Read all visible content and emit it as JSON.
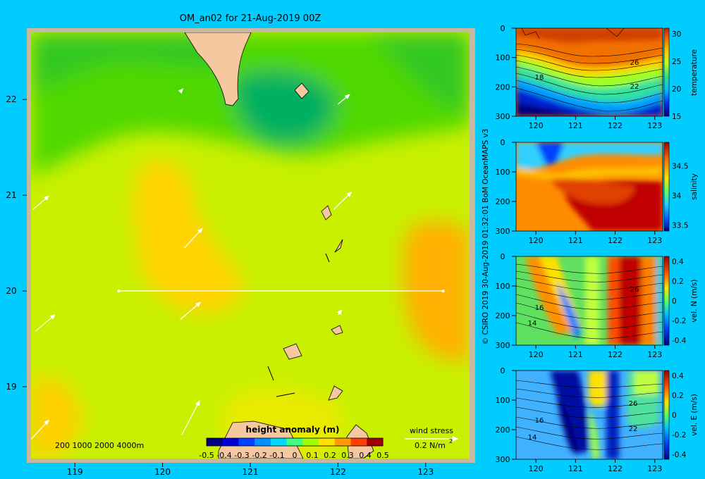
{
  "title": "OM_an02 for 21-Aug-2019 00Z",
  "credit": "© CSIRO 2019   30-Aug-2019 01:32:01  BoM OceanMAPS v3",
  "map": {
    "x_ticks": [
      "119",
      "120",
      "121",
      "122",
      "123"
    ],
    "y_ticks": [
      "22",
      "21",
      "20",
      "19"
    ],
    "depth_legend": "200  1000  2000  4000m",
    "wind_title": "wind stress",
    "wind_scale": "0.2 N/m",
    "wind_scale_exp": "2",
    "colorbar_title": "height anomaly (m)",
    "colorbar_ticks": [
      "-0.5",
      "-0.4",
      "-0.3",
      "-0.2",
      "-0.1",
      "0",
      "0.1",
      "0.2",
      "0.3",
      "0.4",
      "0.5"
    ],
    "colorbar_colors": [
      "#00007f",
      "#0000d6",
      "#0040ff",
      "#0090ff",
      "#00d8ff",
      "#40ff80",
      "#a0ff00",
      "#ffe000",
      "#ff9a00",
      "#ff4000",
      "#a00000"
    ],
    "section_line": {
      "lon_start": 119.5,
      "lon_end": 123.2,
      "lat": 20.0
    }
  },
  "panels": [
    {
      "label": "temperature",
      "y_ticks": [
        "0",
        "100",
        "200",
        "300"
      ],
      "x_ticks": [
        "120",
        "121",
        "122",
        "123"
      ],
      "cb_ticks": [
        "30",
        "25",
        "20",
        "15"
      ],
      "contours": [
        "26",
        "22",
        "18"
      ]
    },
    {
      "label": "salinity",
      "y_ticks": [
        "0",
        "100",
        "200",
        "300"
      ],
      "x_ticks": [
        "120",
        "121",
        "122",
        "123"
      ],
      "cb_ticks": [
        "34.5",
        "34",
        "33.5"
      ],
      "contours": []
    },
    {
      "label": "vel. N  (m/s)",
      "y_ticks": [
        "0",
        "100",
        "200",
        "300"
      ],
      "x_ticks": [
        "120",
        "121",
        "122",
        "123"
      ],
      "cb_ticks": [
        "0.4",
        "0.2",
        "0",
        "-0.2",
        "-0.4"
      ],
      "contours": [
        "16",
        "14",
        "26"
      ]
    },
    {
      "label": "vel. E  (m/s)",
      "y_ticks": [
        "0",
        "100",
        "200",
        "300"
      ],
      "x_ticks": [
        "120",
        "121",
        "122",
        "123"
      ],
      "cb_ticks": [
        "0.4",
        "0.2",
        "0",
        "-0.2",
        "-0.4"
      ],
      "contours": [
        "16",
        "14",
        "26",
        "22"
      ]
    }
  ],
  "chart_data": [
    {
      "type": "heatmap",
      "title": "OM_an02 for 21-Aug-2019 00Z",
      "variable": "height anomaly (m)",
      "x_axis": "longitude",
      "y_axis": "latitude",
      "xlim": [
        118.5,
        123.5
      ],
      "ylim": [
        18.25,
        22.7
      ],
      "clim": [
        -0.5,
        0.5
      ],
      "wind_stress_scale": "0.2 N/m2",
      "section": {
        "lon": [
          119.5,
          123.2
        ],
        "lat": 20.0
      }
    },
    {
      "type": "heatmap",
      "variable": "temperature",
      "xlim": [
        119.5,
        123.2
      ],
      "ylim": [
        300,
        0
      ],
      "clim": [
        15,
        31
      ],
      "contour_labels": [
        26,
        22,
        18
      ]
    },
    {
      "type": "heatmap",
      "variable": "salinity",
      "xlim": [
        119.5,
        123.2
      ],
      "ylim": [
        300,
        0
      ],
      "clim": [
        33.4,
        34.9
      ]
    },
    {
      "type": "heatmap",
      "variable": "vel. N  (m/s)",
      "xlim": [
        119.5,
        123.2
      ],
      "ylim": [
        300,
        0
      ],
      "clim": [
        -0.45,
        0.45
      ],
      "contour_labels": [
        16,
        14,
        26
      ]
    },
    {
      "type": "heatmap",
      "variable": "vel. E  (m/s)",
      "xlim": [
        119.5,
        123.2
      ],
      "ylim": [
        300,
        0
      ],
      "clim": [
        -0.45,
        0.45
      ],
      "contour_labels": [
        16,
        14,
        26,
        22
      ]
    }
  ]
}
